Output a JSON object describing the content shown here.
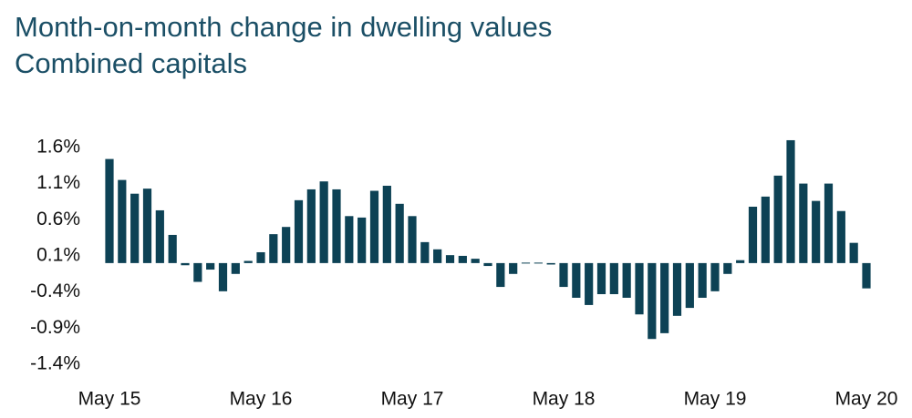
{
  "chart_data": {
    "type": "bar",
    "title": "Month-on-month change in dwelling values",
    "subtitle": "Combined capitals",
    "color": "#0d4255",
    "categories": [
      "May 15",
      null,
      null,
      null,
      null,
      null,
      null,
      null,
      null,
      null,
      null,
      null,
      "May 16",
      null,
      null,
      null,
      null,
      null,
      null,
      null,
      null,
      null,
      null,
      null,
      "May 17",
      null,
      null,
      null,
      null,
      null,
      null,
      null,
      null,
      null,
      null,
      null,
      "May 18",
      null,
      null,
      null,
      null,
      null,
      null,
      null,
      null,
      null,
      null,
      null,
      "May 19",
      null,
      null,
      null,
      null,
      null,
      null,
      null,
      null,
      null,
      null,
      null,
      "May 20"
    ],
    "values": [
      1.44,
      1.15,
      0.96,
      1.03,
      0.73,
      0.39,
      -0.03,
      -0.26,
      -0.09,
      -0.39,
      -0.15,
      0.03,
      0.15,
      0.4,
      0.5,
      0.87,
      1.02,
      1.13,
      1.02,
      0.65,
      0.63,
      1.0,
      1.07,
      0.82,
      0.65,
      0.29,
      0.19,
      0.11,
      0.1,
      0.06,
      -0.04,
      -0.33,
      -0.15,
      0.0,
      0.0,
      -0.02,
      -0.33,
      -0.48,
      -0.58,
      -0.43,
      -0.43,
      -0.48,
      -0.71,
      -1.05,
      -0.97,
      -0.73,
      -0.62,
      -0.48,
      -0.39,
      -0.15,
      0.04,
      0.78,
      0.92,
      1.21,
      1.7,
      1.1,
      0.86,
      1.1,
      0.72,
      0.28,
      -0.35
    ],
    "ylim": [
      -1.4,
      1.75
    ],
    "yticks": [
      {
        "value": 1.6,
        "label": "1.6%"
      },
      {
        "value": 1.1,
        "label": "1.1%"
      },
      {
        "value": 0.6,
        "label": "0.6%"
      },
      {
        "value": 0.1,
        "label": "0.1%"
      },
      {
        "value": -0.4,
        "label": "-0.4%"
      },
      {
        "value": -0.9,
        "label": "-0.9%"
      },
      {
        "value": -1.4,
        "label": "-1.4%"
      }
    ],
    "grid": false
  }
}
